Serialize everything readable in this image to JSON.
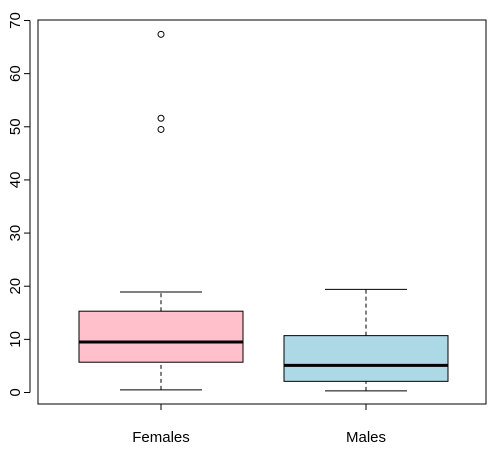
{
  "chart_data": {
    "type": "box",
    "title": "",
    "xlabel": "",
    "ylabel": "",
    "ylim": [
      -2,
      70
    ],
    "yticks": [
      0,
      10,
      20,
      30,
      40,
      50,
      60,
      70
    ],
    "grid": false,
    "categories": [
      "Females",
      "Males"
    ],
    "boxes": [
      {
        "category": "Females",
        "whisker_low": 0.5,
        "q1": 5.7,
        "median": 9.5,
        "q3": 15.3,
        "whisker_high": 18.9,
        "outliers": [
          49.5,
          51.6,
          67.4
        ],
        "color": "#ffc0cb"
      },
      {
        "category": "Males",
        "whisker_low": 0.3,
        "q1": 2.1,
        "median": 5.1,
        "q3": 10.7,
        "whisker_high": 19.4,
        "outliers": [],
        "color": "#add8e6"
      }
    ]
  }
}
